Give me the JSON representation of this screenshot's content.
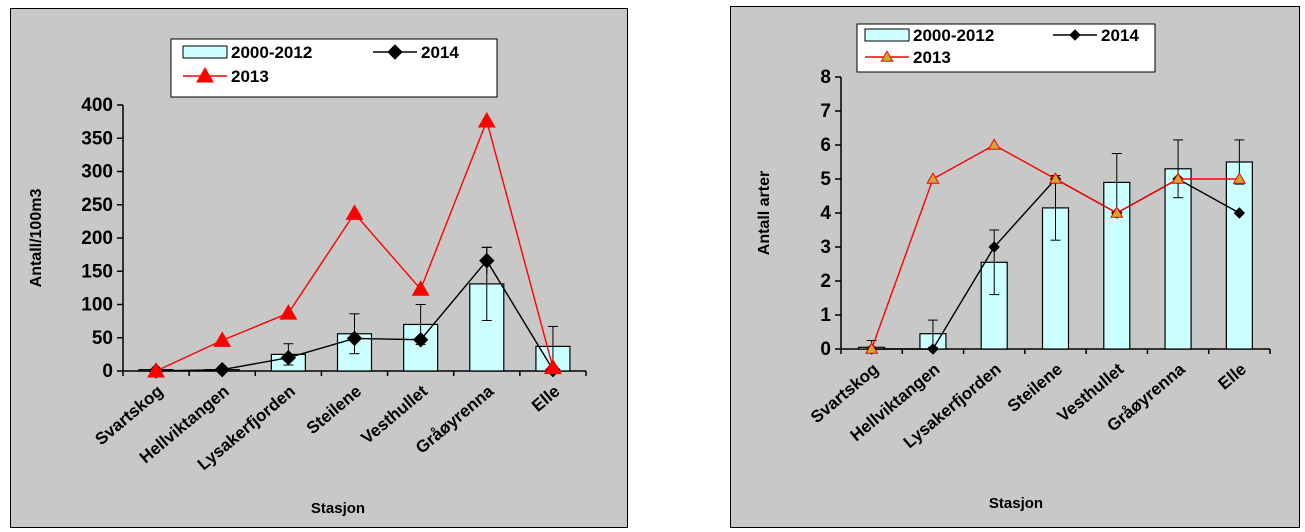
{
  "chart_data": [
    {
      "type": "bar",
      "categories": [
        "Svartskog",
        "Hellviktangen",
        "Lysakerfjorden",
        "Steilene",
        "Vesthullet",
        "Gråøyrenna",
        "Elle"
      ],
      "xlabel": "Stasjon",
      "ylabel": "Antall/100m3",
      "ylim": [
        0,
        400
      ],
      "yticks": [
        0,
        50,
        100,
        150,
        200,
        250,
        300,
        350,
        400
      ],
      "grid": false,
      "legend": "top",
      "series": [
        {
          "name": "2000-2012",
          "type": "bar",
          "color": "#ccffff",
          "values": [
            2,
            2,
            25,
            56,
            70,
            131,
            37
          ],
          "errors": [
            0,
            0,
            16,
            30,
            30,
            55,
            30
          ]
        },
        {
          "name": "2014",
          "type": "line",
          "marker": "diamond",
          "color": "#000000",
          "values": [
            0,
            2,
            20,
            49,
            47,
            166,
            2
          ],
          "errors": [
            0,
            0,
            0,
            0,
            0,
            20,
            0
          ]
        },
        {
          "name": "2013",
          "type": "line",
          "marker": "triangle",
          "color": "#ff0000",
          "values": [
            0,
            46,
            87,
            237,
            123,
            376,
            5
          ]
        }
      ]
    },
    {
      "type": "bar",
      "categories": [
        "Svartskog",
        "Hellviktangen",
        "Lysakerfjorden",
        "Steilene",
        "Vesthullet",
        "Gråøyrenna",
        "Elle"
      ],
      "xlabel": "Stasjon",
      "ylabel": "Antall arter",
      "ylim": [
        0,
        8
      ],
      "yticks": [
        0,
        1,
        2,
        3,
        4,
        5,
        6,
        7,
        8
      ],
      "grid": false,
      "legend": "top",
      "series": [
        {
          "name": "2000-2012",
          "type": "bar",
          "color": "#ccffff",
          "values": [
            0.05,
            0.45,
            2.55,
            4.15,
            4.9,
            5.3,
            5.5
          ],
          "errors": [
            0.2,
            0.4,
            0.95,
            0.95,
            0.85,
            0.85,
            0.65
          ]
        },
        {
          "name": "2014",
          "type": "line",
          "marker": "diamond",
          "color": "#000000",
          "values": [
            0,
            0,
            3,
            5,
            4,
            5,
            4
          ]
        },
        {
          "name": "2013",
          "type": "line",
          "marker": "triangle",
          "color": "#ff0000",
          "marker_fill": "#ccaa33",
          "values": [
            0,
            5,
            6,
            5,
            4,
            5,
            5
          ]
        }
      ]
    }
  ]
}
